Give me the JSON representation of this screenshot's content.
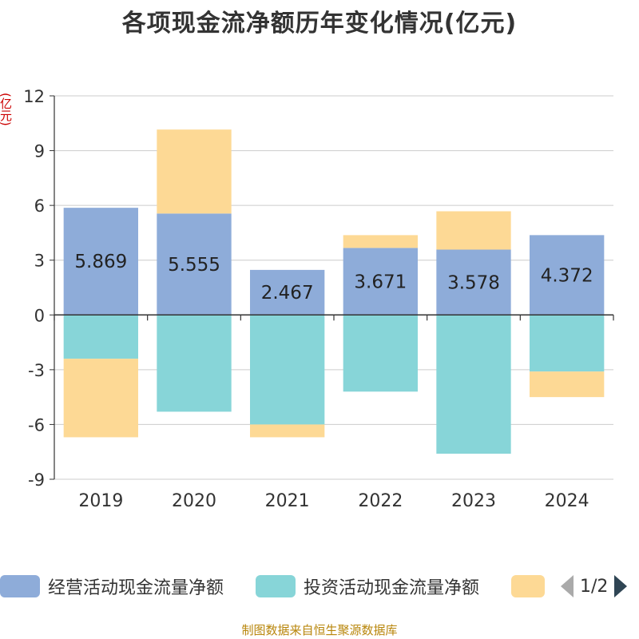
{
  "title": "各项现金流净额历年变化情况(亿元)",
  "unit_label": "(亿元)",
  "source": "制图数据来自恒生聚源数据库",
  "legend": {
    "items": [
      {
        "label": "经营活动现金流量净额",
        "color": "#8eacd9"
      },
      {
        "label": "投资活动现金流量净额",
        "color": "#87d5d8"
      },
      {
        "label": "",
        "color": "#fdd995"
      }
    ],
    "page": "1/2"
  },
  "chart_data": {
    "type": "bar",
    "stacked": true,
    "categories": [
      "2019",
      "2020",
      "2021",
      "2022",
      "2023",
      "2024"
    ],
    "ylim": [
      -9,
      12
    ],
    "yticks": [
      12,
      9,
      6,
      3,
      0,
      -3,
      -6,
      -9
    ],
    "grid": true,
    "series": [
      {
        "name": "经营活动现金流量净额",
        "color": "#8eacd9",
        "values": [
          5.869,
          5.555,
          2.467,
          3.671,
          3.578,
          4.372
        ],
        "labels": [
          "5.869",
          "5.555",
          "2.467",
          "3.671",
          "3.578",
          "4.372"
        ]
      },
      {
        "name": "投资活动现金流量净额",
        "color": "#87d5d8",
        "values": [
          -2.4,
          -5.3,
          -6.0,
          -4.2,
          -7.6,
          -3.1
        ]
      },
      {
        "color": "#fdd995",
        "values": [
          -4.3,
          4.6,
          -0.7,
          0.7,
          2.1,
          -1.4
        ]
      }
    ]
  }
}
